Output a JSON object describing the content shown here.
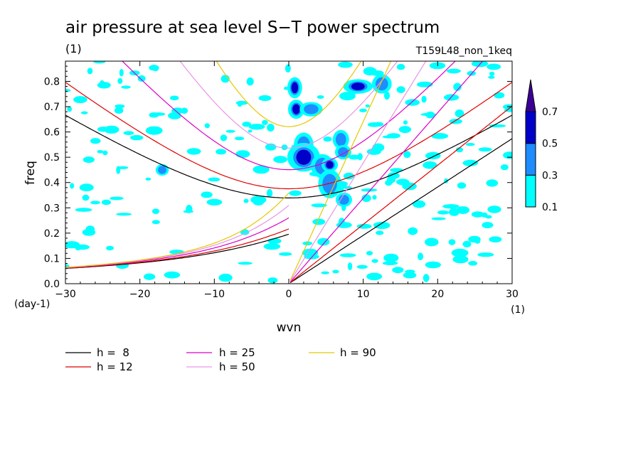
{
  "chart_data": {
    "type": "heatmap",
    "title": "air pressure at sea level S−T power spectrum",
    "units_label": "(1)",
    "run_label": "T159L48_non_1keq",
    "xlabel": "wvn",
    "ylabel": "freq",
    "x_unit": "(1)",
    "y_unit": "(day-1)",
    "xlim": [
      -30,
      30
    ],
    "ylim": [
      0,
      0.88
    ],
    "x_ticks": [
      -30,
      -20,
      -10,
      0,
      10,
      20,
      30
    ],
    "y_ticks": [
      0.0,
      0.1,
      0.2,
      0.3,
      0.4,
      0.5,
      0.6,
      0.7,
      0.8
    ],
    "grid": false,
    "colorbar": {
      "levels": [
        0.1,
        0.3,
        0.5,
        0.7
      ],
      "colors": [
        "#00ffff",
        "#1e8cff",
        "#0000c8",
        "#3c0096"
      ],
      "extend": "max"
    },
    "dispersion_curves": [
      {
        "label": "h =  8",
        "h": 8,
        "color": "#000000"
      },
      {
        "label": "h = 12",
        "h": 12,
        "color": "#e10000"
      },
      {
        "label": "h = 25",
        "h": 25,
        "color": "#dc00c8"
      },
      {
        "label": "h = 50",
        "h": 50,
        "color": "#e696e6"
      },
      {
        "label": "h = 90",
        "h": 90,
        "color": "#e6c800"
      }
    ],
    "power_blobs": [
      {
        "x": 0.8,
        "y": 0.775,
        "rx": 0.45,
        "ry": 0.022,
        "level": 0.5
      },
      {
        "x": 1.0,
        "y": 0.69,
        "rx": 0.5,
        "ry": 0.02,
        "level": 0.5
      },
      {
        "x": 3.0,
        "y": 0.69,
        "rx": 0.7,
        "ry": 0.015,
        "level": 0.3
      },
      {
        "x": 9.3,
        "y": 0.78,
        "rx": 0.9,
        "ry": 0.015,
        "level": 0.5
      },
      {
        "x": 2.0,
        "y": 0.55,
        "rx": 0.6,
        "ry": 0.025,
        "level": 0.3
      },
      {
        "x": 2.0,
        "y": 0.5,
        "rx": 1.0,
        "ry": 0.03,
        "level": 0.5
      },
      {
        "x": 4.5,
        "y": 0.465,
        "rx": 0.7,
        "ry": 0.025,
        "level": 0.3
      },
      {
        "x": 5.5,
        "y": 0.47,
        "rx": 0.5,
        "ry": 0.015,
        "level": 0.5
      },
      {
        "x": 7.0,
        "y": 0.57,
        "rx": 0.5,
        "ry": 0.02,
        "level": 0.3
      },
      {
        "x": 7.3,
        "y": 0.52,
        "rx": 0.5,
        "ry": 0.015,
        "level": 0.3
      },
      {
        "x": 5.5,
        "y": 0.395,
        "rx": 0.7,
        "ry": 0.03,
        "level": 0.3
      },
      {
        "x": 7.4,
        "y": 0.332,
        "rx": 0.5,
        "ry": 0.015,
        "level": 0.3
      },
      {
        "x": 12.5,
        "y": 0.79,
        "rx": 0.6,
        "ry": 0.02,
        "level": 0.3
      },
      {
        "x": -17.0,
        "y": 0.45,
        "rx": 0.4,
        "ry": 0.012,
        "level": 0.3
      }
    ]
  },
  "legend": {
    "items": [
      {
        "label": "h =  8"
      },
      {
        "label": "h = 12"
      },
      {
        "label": "h = 25"
      },
      {
        "label": "h = 50"
      },
      {
        "label": "h = 90"
      }
    ]
  }
}
